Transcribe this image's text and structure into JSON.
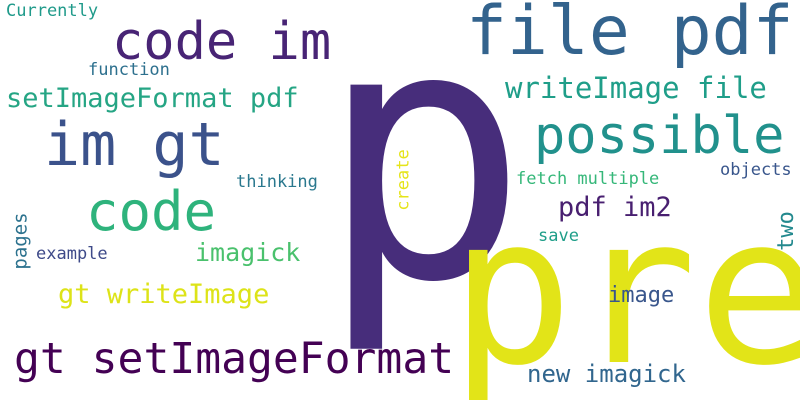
{
  "words": {
    "p": "p",
    "pre": "pre",
    "file_pdf": "file pdf",
    "code_im": "code im",
    "im_gt": "im gt",
    "possible": "possible",
    "code": "code",
    "gt_setImageFormat": "gt setImageFormat",
    "setImageFormat_pdf": "setImageFormat pdf",
    "writeImage_file": "writeImage file",
    "gt_writeImage": "gt writeImage",
    "new_imagick": "new imagick",
    "pdf_im2": "pdf im2",
    "imagick": "imagick",
    "image": "image",
    "currently": "Currently",
    "function": "function",
    "create": "create",
    "thinking": "thinking",
    "fetch_multiple": "fetch multiple",
    "objects": "objects",
    "pages": "pages",
    "two": "two",
    "example": "example",
    "save": "save"
  },
  "colors": {
    "background": "#ffffff",
    "dark_purple": "#482878",
    "deep_purple": "#440154",
    "steel_blue": "#355f8d",
    "slate_blue": "#3b528b",
    "teal": "#26828e",
    "teal_green": "#1f9e89",
    "green": "#35b779",
    "light_green": "#6ece58",
    "yellow": "#e7e419",
    "gold": "#dde318"
  }
}
